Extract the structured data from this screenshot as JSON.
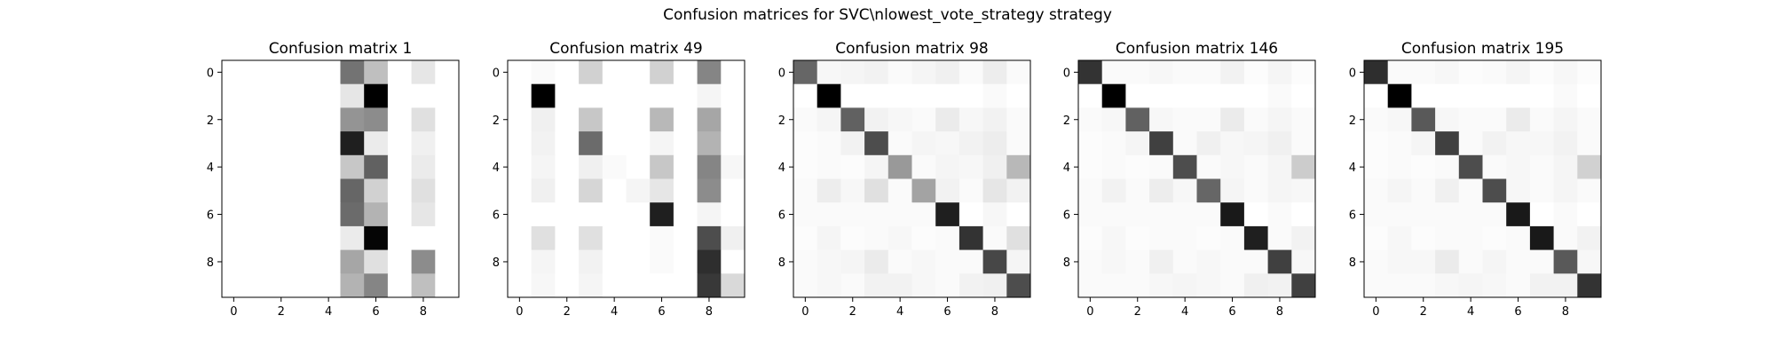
{
  "figure": {
    "title": "Confusion matrices for SVC\\nlowest_vote_strategy strategy"
  },
  "chart_data": [
    {
      "type": "heatmap",
      "title": "Confusion matrix 1",
      "xlabel": "",
      "ylabel": "",
      "x_ticks": [
        0,
        2,
        4,
        6,
        8
      ],
      "y_ticks": [
        0,
        2,
        4,
        6,
        8
      ],
      "colormap": "gray_r",
      "vmax": 1,
      "matrix": [
        [
          0,
          0,
          0,
          0,
          0,
          0.55,
          0.25,
          0,
          0.1,
          0
        ],
        [
          0,
          0,
          0,
          0,
          0,
          0.1,
          1.0,
          0,
          0,
          0
        ],
        [
          0,
          0,
          0,
          0,
          0,
          0.42,
          0.45,
          0,
          0.12,
          0
        ],
        [
          0,
          0,
          0,
          0,
          0,
          0.88,
          0.08,
          0,
          0.06,
          0
        ],
        [
          0,
          0,
          0,
          0,
          0,
          0.22,
          0.62,
          0,
          0.08,
          0
        ],
        [
          0,
          0,
          0,
          0,
          0,
          0.6,
          0.18,
          0,
          0.12,
          0
        ],
        [
          0,
          0,
          0,
          0,
          0,
          0.58,
          0.3,
          0,
          0.1,
          0
        ],
        [
          0,
          0,
          0,
          0,
          0,
          0.08,
          0.98,
          0,
          0,
          0
        ],
        [
          0,
          0,
          0,
          0,
          0,
          0.35,
          0.12,
          0,
          0.45,
          0
        ],
        [
          0,
          0,
          0,
          0,
          0,
          0.3,
          0.48,
          0,
          0.25,
          0
        ]
      ]
    },
    {
      "type": "heatmap",
      "title": "Confusion matrix 49",
      "xlabel": "",
      "ylabel": "",
      "x_ticks": [
        0,
        2,
        4,
        6,
        8
      ],
      "y_ticks": [
        0,
        2,
        4,
        6,
        8
      ],
      "colormap": "gray_r",
      "vmax": 1,
      "matrix": [
        [
          0,
          0.02,
          0,
          0.18,
          0,
          0,
          0.18,
          0,
          0.48,
          0
        ],
        [
          0,
          1.0,
          0,
          0,
          0,
          0,
          0,
          0,
          0.04,
          0
        ],
        [
          0,
          0.06,
          0,
          0.22,
          0,
          0,
          0.28,
          0,
          0.35,
          0
        ],
        [
          0,
          0.05,
          0,
          0.58,
          0,
          0,
          0.04,
          0,
          0.3,
          0
        ],
        [
          0,
          0.04,
          0,
          0.06,
          0.02,
          0,
          0.22,
          0,
          0.48,
          0.03
        ],
        [
          0,
          0.06,
          0,
          0.16,
          0,
          0.04,
          0.1,
          0,
          0.45,
          0
        ],
        [
          0,
          0,
          0,
          0,
          0,
          0,
          0.88,
          0,
          0.04,
          0
        ],
        [
          0,
          0.12,
          0,
          0.12,
          0,
          0,
          0.02,
          0,
          0.7,
          0.06
        ],
        [
          0,
          0.04,
          0,
          0.05,
          0,
          0,
          0.02,
          0,
          0.82,
          0
        ],
        [
          0,
          0.03,
          0,
          0.04,
          0,
          0,
          0,
          0,
          0.78,
          0.15
        ]
      ]
    },
    {
      "type": "heatmap",
      "title": "Confusion matrix 98",
      "xlabel": "",
      "ylabel": "",
      "x_ticks": [
        0,
        2,
        4,
        6,
        8
      ],
      "y_ticks": [
        0,
        2,
        4,
        6,
        8
      ],
      "colormap": "gray_r",
      "vmax": 1,
      "matrix": [
        [
          0.6,
          0.03,
          0.04,
          0.05,
          0.02,
          0.04,
          0.06,
          0.02,
          0.07,
          0.02
        ],
        [
          0,
          1.0,
          0,
          0,
          0,
          0,
          0,
          0,
          0.02,
          0
        ],
        [
          0.02,
          0.04,
          0.62,
          0.05,
          0.03,
          0.02,
          0.08,
          0.03,
          0.05,
          0.02
        ],
        [
          0.01,
          0.02,
          0.05,
          0.7,
          0.02,
          0.04,
          0.03,
          0.05,
          0.07,
          0.02
        ],
        [
          0.01,
          0.02,
          0.01,
          0.04,
          0.4,
          0.02,
          0.04,
          0.03,
          0.06,
          0.28
        ],
        [
          0.02,
          0.07,
          0.03,
          0.12,
          0.02,
          0.36,
          0.05,
          0.02,
          0.1,
          0.05
        ],
        [
          0.02,
          0.02,
          0.02,
          0.02,
          0.02,
          0.02,
          0.88,
          0,
          0.03,
          0
        ],
        [
          0.01,
          0.04,
          0.01,
          0.02,
          0.03,
          0.01,
          0.02,
          0.8,
          0.02,
          0.12
        ],
        [
          0.02,
          0.03,
          0.04,
          0.08,
          0.02,
          0.03,
          0.02,
          0.02,
          0.72,
          0.04
        ],
        [
          0.02,
          0.03,
          0.02,
          0.05,
          0.05,
          0.03,
          0.02,
          0.05,
          0.06,
          0.7
        ]
      ]
    },
    {
      "type": "heatmap",
      "title": "Confusion matrix 146",
      "xlabel": "",
      "ylabel": "",
      "x_ticks": [
        0,
        2,
        4,
        6,
        8
      ],
      "y_ticks": [
        0,
        2,
        4,
        6,
        8
      ],
      "colormap": "gray_r",
      "vmax": 1,
      "matrix": [
        [
          0.8,
          0.02,
          0.02,
          0.03,
          0.02,
          0.02,
          0.05,
          0.01,
          0.04,
          0.01
        ],
        [
          0,
          1.0,
          0,
          0,
          0,
          0,
          0,
          0,
          0.02,
          0
        ],
        [
          0.02,
          0.03,
          0.62,
          0.03,
          0.02,
          0.02,
          0.08,
          0.02,
          0.04,
          0.02
        ],
        [
          0.01,
          0.02,
          0.04,
          0.75,
          0.02,
          0.06,
          0.03,
          0.04,
          0.06,
          0.02
        ],
        [
          0.01,
          0.02,
          0.01,
          0.02,
          0.7,
          0.02,
          0.03,
          0.02,
          0.04,
          0.2
        ],
        [
          0.02,
          0.05,
          0.02,
          0.07,
          0.03,
          0.6,
          0.04,
          0.02,
          0.04,
          0.03
        ],
        [
          0.02,
          0.02,
          0.02,
          0.02,
          0.02,
          0.02,
          0.9,
          0,
          0.02,
          0
        ],
        [
          0.01,
          0.03,
          0.01,
          0.02,
          0.02,
          0.01,
          0.02,
          0.88,
          0.02,
          0.05
        ],
        [
          0.02,
          0.03,
          0.02,
          0.06,
          0.02,
          0.03,
          0.02,
          0.02,
          0.75,
          0.03
        ],
        [
          0.02,
          0.02,
          0.02,
          0.03,
          0.04,
          0.03,
          0.02,
          0.06,
          0.05,
          0.75
        ]
      ]
    },
    {
      "type": "heatmap",
      "title": "Confusion matrix 195",
      "xlabel": "",
      "ylabel": "",
      "x_ticks": [
        0,
        2,
        4,
        6,
        8
      ],
      "y_ticks": [
        0,
        2,
        4,
        6,
        8
      ],
      "colormap": "gray_r",
      "vmax": 1,
      "matrix": [
        [
          0.82,
          0.02,
          0.02,
          0.03,
          0.01,
          0.02,
          0.04,
          0.01,
          0.03,
          0.01
        ],
        [
          0,
          1.0,
          0,
          0,
          0,
          0,
          0,
          0,
          0.02,
          0
        ],
        [
          0.02,
          0.03,
          0.65,
          0.03,
          0.02,
          0.02,
          0.08,
          0.02,
          0.04,
          0.02
        ],
        [
          0.01,
          0.02,
          0.04,
          0.75,
          0.02,
          0.05,
          0.03,
          0.03,
          0.05,
          0.02
        ],
        [
          0.01,
          0.02,
          0.01,
          0.02,
          0.7,
          0.02,
          0.03,
          0.02,
          0.04,
          0.18
        ],
        [
          0.02,
          0.04,
          0.02,
          0.06,
          0.02,
          0.7,
          0.03,
          0.02,
          0.04,
          0.02
        ],
        [
          0.02,
          0.02,
          0.02,
          0.02,
          0.02,
          0.02,
          0.9,
          0,
          0.02,
          0
        ],
        [
          0.01,
          0.03,
          0.01,
          0.02,
          0.02,
          0.01,
          0.02,
          0.9,
          0.02,
          0.05
        ],
        [
          0.02,
          0.03,
          0.03,
          0.08,
          0.02,
          0.04,
          0.02,
          0.02,
          0.65,
          0.03
        ],
        [
          0.02,
          0.02,
          0.02,
          0.03,
          0.04,
          0.03,
          0.02,
          0.05,
          0.05,
          0.8
        ]
      ]
    }
  ]
}
